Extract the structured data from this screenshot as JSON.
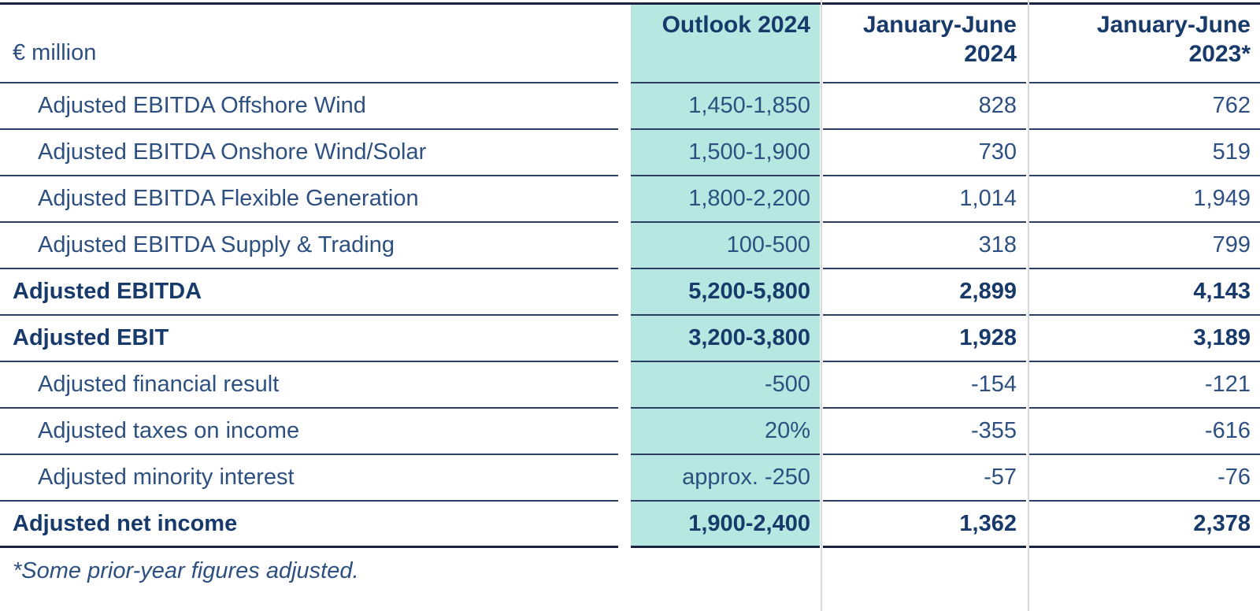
{
  "table": {
    "unit_label": "€ million",
    "columns": [
      {
        "line1": "Outlook 2024",
        "line2": ""
      },
      {
        "line1": "January-June",
        "line2": "2024"
      },
      {
        "line1": "January-June",
        "line2": "2023*"
      }
    ],
    "rows": [
      {
        "label": "Adjusted EBITDA Offshore Wind",
        "outlook": "1,450-1,850",
        "h1_2024": "828",
        "h1_2023": "762"
      },
      {
        "label": "Adjusted EBITDA Onshore Wind/Solar",
        "outlook": "1,500-1,900",
        "h1_2024": "730",
        "h1_2023": "519"
      },
      {
        "label": "Adjusted EBITDA Flexible Generation",
        "outlook": "1,800-2,200",
        "h1_2024": "1,014",
        "h1_2023": "1,949"
      },
      {
        "label": "Adjusted EBITDA Supply & Trading",
        "outlook": "100-500",
        "h1_2024": "318",
        "h1_2023": "799"
      },
      {
        "label": "Adjusted EBITDA",
        "outlook": "5,200-5,800",
        "h1_2024": "2,899",
        "h1_2023": "4,143"
      },
      {
        "label": "Adjusted EBIT",
        "outlook": "3,200-3,800",
        "h1_2024": "1,928",
        "h1_2023": "3,189"
      },
      {
        "label": "Adjusted financial result",
        "outlook": "-500",
        "h1_2024": "-154",
        "h1_2023": "-121"
      },
      {
        "label": "Adjusted taxes on income",
        "outlook": "20%",
        "h1_2024": "-355",
        "h1_2023": "-616"
      },
      {
        "label": "Adjusted minority interest",
        "outlook": "approx. -250",
        "h1_2024": "-57",
        "h1_2023": "-76"
      },
      {
        "label": "Adjusted net income",
        "outlook": "1,900-2,400",
        "h1_2024": "1,362",
        "h1_2023": "2,378"
      }
    ],
    "footnote": "*Some prior-year figures adjusted."
  },
  "colors": {
    "highlight_column_background": "#b6e7e0",
    "text_navy": "#2d5080",
    "text_navy_bold": "#173a6a",
    "row_line": "#2b3e63",
    "thick_rule": "#1a2440",
    "column_divider": "#d9d9d9"
  }
}
